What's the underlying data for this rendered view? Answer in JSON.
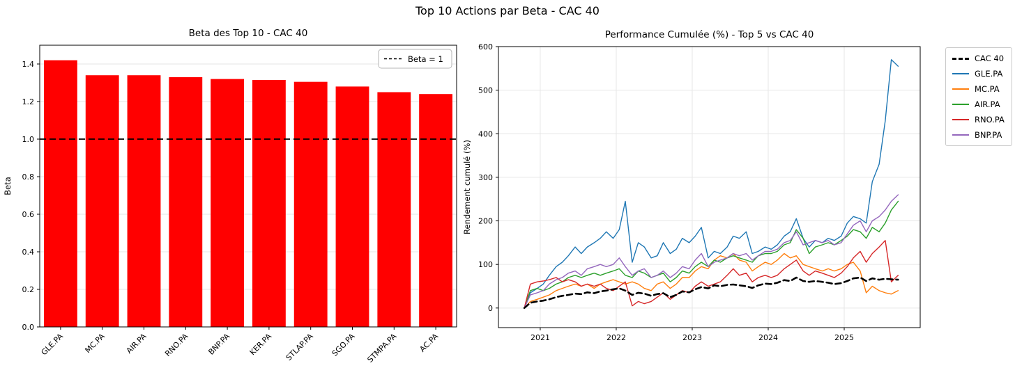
{
  "figure": {
    "title": "Top 10 Actions par Beta - CAC 40",
    "background": "#ffffff",
    "text_color": "#000000",
    "grid_color": "#e6e6e6",
    "spine_color": "#000000"
  },
  "chart_data": [
    {
      "type": "bar",
      "title": "Beta des Top 10 - CAC 40",
      "xlabel": "",
      "ylabel": "Beta",
      "categories": [
        "GLE.PA",
        "MC.PA",
        "AIR.PA",
        "RNO.PA",
        "BNP.PA",
        "KER.PA",
        "STLAP.PA",
        "SGO.PA",
        "STMPA.PA",
        "AC.PA"
      ],
      "values": [
        1.42,
        1.34,
        1.34,
        1.33,
        1.32,
        1.315,
        1.305,
        1.28,
        1.25,
        1.24
      ],
      "bar_color": "#ff0000",
      "ylim": [
        0,
        1.5
      ],
      "yticks": [
        0.0,
        0.2,
        0.4,
        0.6,
        0.8,
        1.0,
        1.2,
        1.4
      ],
      "grid": true,
      "legend_position": "upper-right-inside",
      "reference_line": {
        "value": 1.0,
        "label": "Beta = 1",
        "color": "#000000",
        "style": "dashed"
      }
    },
    {
      "type": "line",
      "title": "Performance Cumulée (%) - Top 5 vs CAC 40",
      "xlabel": "",
      "ylabel": "Rendement cumulé (%)",
      "xlim": [
        2020.45,
        2026.0
      ],
      "ylim": [
        -45,
        600
      ],
      "xticks": [
        2021,
        2022,
        2023,
        2024,
        2025
      ],
      "yticks": [
        0,
        100,
        200,
        300,
        400,
        500,
        600
      ],
      "grid": true,
      "legend_position": "outside-right",
      "x_unit": "year (monthly samples)",
      "x": [
        2020.79,
        2020.87,
        2020.96,
        2021.04,
        2021.12,
        2021.21,
        2021.29,
        2021.37,
        2021.46,
        2021.54,
        2021.62,
        2021.71,
        2021.79,
        2021.87,
        2021.96,
        2022.04,
        2022.12,
        2022.21,
        2022.29,
        2022.37,
        2022.46,
        2022.54,
        2022.62,
        2022.71,
        2022.79,
        2022.87,
        2022.96,
        2023.04,
        2023.12,
        2023.21,
        2023.29,
        2023.37,
        2023.46,
        2023.54,
        2023.62,
        2023.71,
        2023.79,
        2023.87,
        2023.96,
        2024.04,
        2024.12,
        2024.21,
        2024.29,
        2024.37,
        2024.46,
        2024.54,
        2024.62,
        2024.71,
        2024.79,
        2024.87,
        2024.96,
        2025.04,
        2025.12,
        2025.21,
        2025.29,
        2025.37,
        2025.46,
        2025.54,
        2025.62,
        2025.71
      ],
      "series": [
        {
          "name": "CAC 40",
          "color": "#000000",
          "dashed": true,
          "width": 2.6,
          "values": [
            0,
            12,
            15,
            17,
            20,
            25,
            28,
            30,
            33,
            32,
            36,
            34,
            38,
            40,
            43,
            45,
            40,
            30,
            35,
            33,
            28,
            32,
            34,
            25,
            30,
            38,
            36,
            43,
            48,
            45,
            52,
            50,
            53,
            54,
            52,
            50,
            46,
            52,
            56,
            55,
            58,
            64,
            62,
            70,
            62,
            60,
            62,
            60,
            58,
            55,
            57,
            62,
            68,
            70,
            62,
            68,
            65,
            67,
            66,
            65
          ]
        },
        {
          "name": "GLE.PA",
          "color": "#1f77b4",
          "dashed": false,
          "width": 1.4,
          "values": [
            0,
            35,
            45,
            55,
            75,
            95,
            105,
            120,
            140,
            125,
            140,
            150,
            160,
            175,
            160,
            180,
            245,
            105,
            150,
            140,
            115,
            120,
            150,
            125,
            135,
            160,
            150,
            165,
            185,
            115,
            130,
            125,
            140,
            165,
            160,
            175,
            125,
            130,
            140,
            135,
            145,
            165,
            175,
            205,
            160,
            140,
            155,
            150,
            160,
            155,
            165,
            195,
            210,
            205,
            195,
            290,
            330,
            430,
            570,
            555
          ]
        },
        {
          "name": "MC.PA",
          "color": "#ff7f0e",
          "dashed": false,
          "width": 1.4,
          "values": [
            0,
            15,
            20,
            25,
            30,
            40,
            45,
            50,
            55,
            50,
            55,
            45,
            55,
            60,
            65,
            60,
            55,
            60,
            55,
            45,
            40,
            55,
            60,
            45,
            55,
            70,
            70,
            85,
            95,
            90,
            110,
            120,
            115,
            125,
            110,
            105,
            85,
            95,
            105,
            100,
            110,
            125,
            115,
            120,
            100,
            95,
            90,
            85,
            90,
            85,
            90,
            100,
            105,
            85,
            35,
            50,
            40,
            35,
            32,
            40
          ]
        },
        {
          "name": "AIR.PA",
          "color": "#2ca02c",
          "dashed": false,
          "width": 1.4,
          "values": [
            0,
            40,
            45,
            40,
            45,
            55,
            60,
            70,
            75,
            70,
            75,
            80,
            75,
            80,
            85,
            90,
            75,
            70,
            85,
            80,
            70,
            75,
            80,
            60,
            70,
            85,
            80,
            95,
            105,
            95,
            110,
            105,
            115,
            120,
            115,
            110,
            105,
            120,
            125,
            125,
            130,
            145,
            150,
            180,
            160,
            125,
            140,
            145,
            150,
            145,
            155,
            165,
            180,
            175,
            160,
            185,
            175,
            195,
            225,
            245
          ]
        },
        {
          "name": "RNO.PA",
          "color": "#d62728",
          "dashed": false,
          "width": 1.4,
          "values": [
            0,
            55,
            60,
            62,
            65,
            70,
            60,
            65,
            60,
            50,
            55,
            50,
            55,
            45,
            40,
            50,
            60,
            5,
            15,
            10,
            15,
            25,
            35,
            20,
            30,
            40,
            35,
            50,
            60,
            50,
            55,
            60,
            75,
            90,
            75,
            80,
            60,
            70,
            75,
            70,
            75,
            90,
            100,
            110,
            85,
            75,
            85,
            80,
            75,
            70,
            80,
            95,
            115,
            130,
            105,
            125,
            140,
            155,
            60,
            75
          ]
        },
        {
          "name": "BNP.PA",
          "color": "#9467bd",
          "dashed": false,
          "width": 1.4,
          "values": [
            0,
            30,
            35,
            40,
            55,
            65,
            70,
            80,
            85,
            75,
            90,
            95,
            100,
            95,
            100,
            115,
            95,
            75,
            85,
            90,
            70,
            75,
            85,
            70,
            80,
            95,
            90,
            110,
            125,
            95,
            105,
            110,
            115,
            125,
            120,
            125,
            110,
            120,
            130,
            130,
            135,
            150,
            155,
            175,
            145,
            150,
            155,
            150,
            155,
            145,
            150,
            170,
            190,
            200,
            175,
            200,
            210,
            225,
            245,
            260
          ]
        }
      ]
    }
  ]
}
